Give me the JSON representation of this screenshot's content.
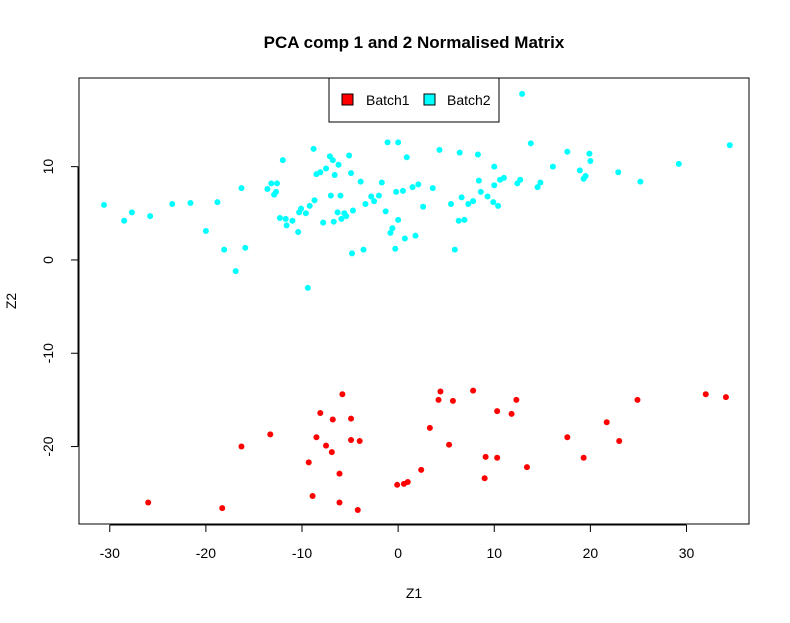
{
  "chart_data": {
    "type": "scatter",
    "title": "PCA comp 1 and 2 Normalised Matrix",
    "xlabel": "Z1",
    "ylabel": "Z2",
    "xlim": [
      -33.2,
      36.5
    ],
    "ylim": [
      -28.3,
      19.5
    ],
    "xticks": [
      -30,
      -20,
      -10,
      0,
      10,
      20,
      30
    ],
    "yticks": [
      -20,
      -10,
      0,
      10
    ],
    "grid": false,
    "legend_position": "top-center",
    "series": [
      {
        "name": "Batch1",
        "color": "#ff0000",
        "points": [
          [
            -26.0,
            -26.0
          ],
          [
            -18.3,
            -26.6
          ],
          [
            -16.3,
            -20.0
          ],
          [
            -13.3,
            -18.7
          ],
          [
            -9.3,
            -21.7
          ],
          [
            -8.9,
            -25.3
          ],
          [
            -8.5,
            -19.0
          ],
          [
            -8.1,
            -16.4
          ],
          [
            -7.5,
            -19.9
          ],
          [
            -6.9,
            -20.6
          ],
          [
            -6.8,
            -17.1
          ],
          [
            -6.1,
            -26.0
          ],
          [
            -6.1,
            -22.9
          ],
          [
            -5.8,
            -14.4
          ],
          [
            -4.9,
            -17.0
          ],
          [
            -4.9,
            -19.3
          ],
          [
            -4.2,
            -26.8
          ],
          [
            -4.0,
            -19.4
          ],
          [
            -0.1,
            -24.1
          ],
          [
            0.6,
            -24.0
          ],
          [
            1.0,
            -23.8
          ],
          [
            2.4,
            -22.5
          ],
          [
            3.3,
            -18.0
          ],
          [
            4.2,
            -15.0
          ],
          [
            4.4,
            -14.1
          ],
          [
            5.3,
            -19.8
          ],
          [
            5.7,
            -15.1
          ],
          [
            7.8,
            -14.0
          ],
          [
            9.0,
            -23.4
          ],
          [
            9.1,
            -21.1
          ],
          [
            10.3,
            -16.2
          ],
          [
            10.3,
            -21.2
          ],
          [
            11.8,
            -16.5
          ],
          [
            12.3,
            -15.0
          ],
          [
            13.4,
            -22.2
          ],
          [
            17.6,
            -19.0
          ],
          [
            19.3,
            -21.2
          ],
          [
            21.7,
            -17.4
          ],
          [
            23.0,
            -19.4
          ],
          [
            24.9,
            -15.0
          ],
          [
            32.0,
            -14.4
          ],
          [
            34.1,
            -14.7
          ]
        ]
      },
      {
        "name": "Batch2",
        "color": "#00ffff",
        "points": [
          [
            -30.6,
            5.9
          ],
          [
            -28.5,
            4.2
          ],
          [
            -27.7,
            5.1
          ],
          [
            -25.8,
            4.7
          ],
          [
            -23.5,
            6.0
          ],
          [
            -21.6,
            6.1
          ],
          [
            -20.0,
            3.1
          ],
          [
            -18.8,
            6.2
          ],
          [
            -18.1,
            1.1
          ],
          [
            -16.9,
            -1.2
          ],
          [
            -16.3,
            7.7
          ],
          [
            -15.9,
            1.3
          ],
          [
            -13.6,
            7.6
          ],
          [
            -13.2,
            8.2
          ],
          [
            -12.9,
            7.0
          ],
          [
            -12.7,
            7.3
          ],
          [
            -12.6,
            8.2
          ],
          [
            -12.3,
            4.5
          ],
          [
            -12.0,
            10.7
          ],
          [
            -11.7,
            4.4
          ],
          [
            -11.6,
            3.7
          ],
          [
            -11.0,
            4.2
          ],
          [
            -10.4,
            3.0
          ],
          [
            -10.3,
            5.1
          ],
          [
            -10.1,
            5.5
          ],
          [
            -9.6,
            5.0
          ],
          [
            -9.2,
            5.8
          ],
          [
            -9.4,
            -3.0
          ],
          [
            -8.8,
            11.9
          ],
          [
            -8.7,
            6.4
          ],
          [
            -8.5,
            9.2
          ],
          [
            -8.1,
            9.4
          ],
          [
            -7.8,
            4.0
          ],
          [
            -7.5,
            9.8
          ],
          [
            -7.1,
            11.1
          ],
          [
            -7.0,
            6.9
          ],
          [
            -6.8,
            10.7
          ],
          [
            -6.7,
            4.1
          ],
          [
            -6.6,
            9.1
          ],
          [
            -6.3,
            5.1
          ],
          [
            -6.2,
            10.2
          ],
          [
            -6.0,
            6.9
          ],
          [
            -5.9,
            4.4
          ],
          [
            -5.6,
            5.0
          ],
          [
            -5.4,
            4.7
          ],
          [
            -5.1,
            11.2
          ],
          [
            -4.9,
            9.3
          ],
          [
            -4.8,
            0.7
          ],
          [
            -4.7,
            5.3
          ],
          [
            -3.9,
            8.4
          ],
          [
            -3.6,
            1.1
          ],
          [
            -3.4,
            6.0
          ],
          [
            -2.8,
            6.8
          ],
          [
            -2.5,
            6.3
          ],
          [
            -2.0,
            6.9
          ],
          [
            -1.7,
            8.3
          ],
          [
            -1.3,
            5.2
          ],
          [
            -1.1,
            12.6
          ],
          [
            -0.8,
            2.9
          ],
          [
            -0.6,
            3.4
          ],
          [
            -0.3,
            1.2
          ],
          [
            -0.2,
            7.3
          ],
          [
            0.0,
            4.3
          ],
          [
            0.0,
            12.6
          ],
          [
            0.5,
            7.4
          ],
          [
            0.7,
            2.3
          ],
          [
            0.9,
            11.0
          ],
          [
            1.5,
            7.8
          ],
          [
            1.8,
            2.6
          ],
          [
            2.1,
            8.1
          ],
          [
            2.6,
            5.7
          ],
          [
            3.6,
            7.7
          ],
          [
            4.3,
            11.8
          ],
          [
            5.5,
            6.0
          ],
          [
            5.9,
            1.1
          ],
          [
            6.3,
            4.2
          ],
          [
            6.4,
            11.5
          ],
          [
            6.6,
            6.7
          ],
          [
            6.9,
            4.3
          ],
          [
            7.3,
            6.0
          ],
          [
            7.8,
            6.3
          ],
          [
            8.3,
            11.3
          ],
          [
            8.4,
            8.5
          ],
          [
            8.6,
            7.3
          ],
          [
            9.3,
            6.8
          ],
          [
            9.9,
            6.2
          ],
          [
            10.0,
            10.0
          ],
          [
            10.0,
            8.0
          ],
          [
            10.4,
            5.8
          ],
          [
            10.6,
            8.6
          ],
          [
            11.0,
            8.8
          ],
          [
            12.4,
            8.2
          ],
          [
            12.7,
            8.6
          ],
          [
            12.9,
            17.8
          ],
          [
            13.8,
            12.5
          ],
          [
            14.5,
            7.8
          ],
          [
            14.8,
            8.3
          ],
          [
            16.1,
            10.0
          ],
          [
            17.6,
            11.6
          ],
          [
            18.9,
            9.6
          ],
          [
            19.3,
            8.7
          ],
          [
            19.5,
            9.0
          ],
          [
            19.9,
            11.4
          ],
          [
            20.0,
            10.6
          ],
          [
            22.9,
            9.4
          ],
          [
            25.2,
            8.4
          ],
          [
            29.2,
            10.3
          ],
          [
            34.5,
            12.3
          ]
        ]
      }
    ]
  }
}
